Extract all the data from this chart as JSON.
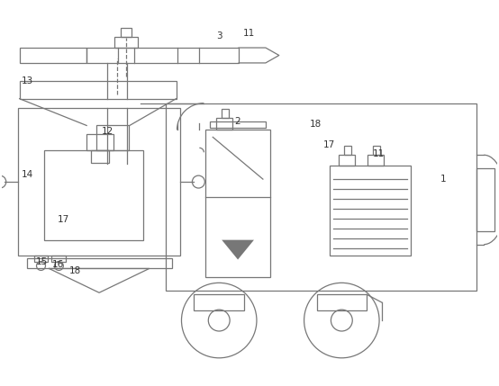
{
  "bg_color": "#ffffff",
  "line_color": "#777777",
  "label_color": "#333333",
  "fig_width": 5.54,
  "fig_height": 4.29,
  "dpi": 100
}
